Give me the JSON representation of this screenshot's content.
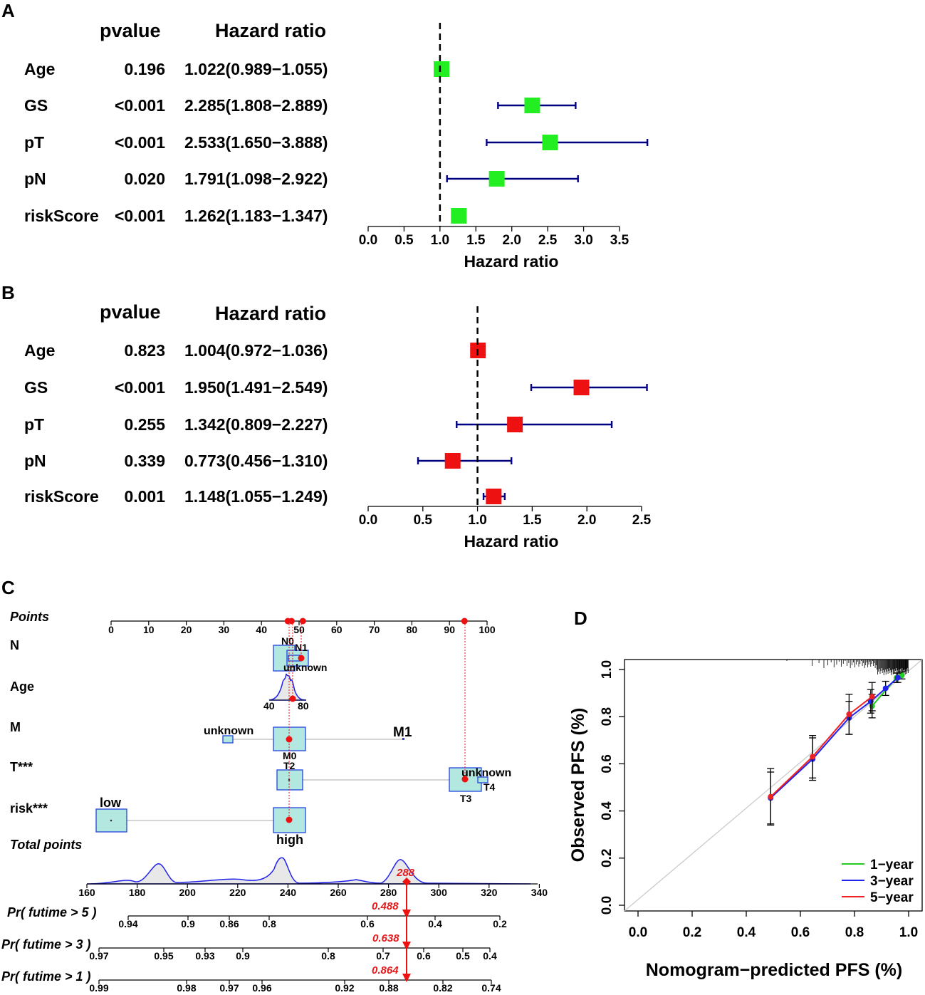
{
  "colors": {
    "forest_a_box": "#22ee22",
    "forest_b_box": "#ee1111",
    "ci_line": "#000080",
    "nomo_box_fill": "#b3e8e0",
    "nomo_box_stroke": "#2244dd",
    "nomo_red": "#ee1111",
    "line_1year": "#22cc22",
    "line_3year": "#2222ee",
    "line_5year": "#ee2222"
  },
  "chart_data": [
    {
      "panel": "A",
      "type": "forest",
      "col_pvalue": "pvalue",
      "col_hr": "Hazard ratio",
      "xlabel": "Hazard ratio",
      "ticks": [
        "0.0",
        "0.5",
        "1.0",
        "1.5",
        "2.0",
        "2.5",
        "3.0",
        "3.5"
      ],
      "xlim": [
        0,
        3.5
      ],
      "ref": 1.0,
      "rows": [
        {
          "name": "Age",
          "pvalue": "0.196",
          "hr_text": "1.022(0.989−1.055)",
          "hr": 1.022,
          "lo": 0.989,
          "hi": 1.055
        },
        {
          "name": "GS",
          "pvalue": "<0.001",
          "hr_text": "2.285(1.808−2.889)",
          "hr": 2.285,
          "lo": 1.808,
          "hi": 2.889
        },
        {
          "name": "pT",
          "pvalue": "<0.001",
          "hr_text": "2.533(1.650−3.888)",
          "hr": 2.533,
          "lo": 1.65,
          "hi": 3.888
        },
        {
          "name": "pN",
          "pvalue": "0.020",
          "hr_text": "1.791(1.098−2.922)",
          "hr": 1.791,
          "lo": 1.098,
          "hi": 2.922
        },
        {
          "name": "riskScore",
          "pvalue": "<0.001",
          "hr_text": "1.262(1.183−1.347)",
          "hr": 1.262,
          "lo": 1.183,
          "hi": 1.347
        }
      ]
    },
    {
      "panel": "B",
      "type": "forest",
      "col_pvalue": "pvalue",
      "col_hr": "Hazard ratio",
      "xlabel": "Hazard ratio",
      "ticks": [
        "0.0",
        "0.5",
        "1.0",
        "1.5",
        "2.0",
        "2.5"
      ],
      "xlim": [
        0,
        2.5
      ],
      "ref": 1.0,
      "rows": [
        {
          "name": "Age",
          "pvalue": "0.823",
          "hr_text": "1.004(0.972−1.036)",
          "hr": 1.004,
          "lo": 0.972,
          "hi": 1.036
        },
        {
          "name": "GS",
          "pvalue": "<0.001",
          "hr_text": "1.950(1.491−2.549)",
          "hr": 1.95,
          "lo": 1.491,
          "hi": 2.549
        },
        {
          "name": "pT",
          "pvalue": "0.255",
          "hr_text": "1.342(0.809−2.227)",
          "hr": 1.342,
          "lo": 0.809,
          "hi": 2.227
        },
        {
          "name": "pN",
          "pvalue": "0.339",
          "hr_text": "0.773(0.456−1.310)",
          "hr": 0.773,
          "lo": 0.456,
          "hi": 1.31
        },
        {
          "name": "riskScore",
          "pvalue": "0.001",
          "hr_text": "1.148(1.055−1.249)",
          "hr": 1.148,
          "lo": 1.055,
          "hi": 1.249
        }
      ]
    },
    {
      "panel": "C",
      "type": "nomogram",
      "points_label": "Points",
      "points_ticks": [
        "0",
        "10",
        "20",
        "30",
        "40",
        "50",
        "60",
        "70",
        "80",
        "90",
        "100"
      ],
      "rows": {
        "N": {
          "label": "N",
          "cats": [
            "N0",
            "N1",
            "unknown"
          ],
          "points": [
            47,
            51,
            50
          ]
        },
        "Age": {
          "label": "Age",
          "ticks": [
            "40",
            "80"
          ],
          "points": 48
        },
        "M": {
          "label": "M",
          "cats": [
            "unknown",
            "M0",
            "M1"
          ],
          "points": [
            31,
            47,
            77
          ]
        },
        "T": {
          "label": "T***",
          "cats": [
            "T2",
            "unknown",
            "T3",
            "T4"
          ],
          "points": [
            47,
            94,
            94,
            99
          ]
        },
        "risk": {
          "label": "risk***",
          "cats": [
            "low",
            "high"
          ],
          "points": [
            0,
            47
          ]
        }
      },
      "total_label": "Total points",
      "total_ticks": [
        "160",
        "180",
        "200",
        "220",
        "240",
        "260",
        "280",
        "300",
        "320",
        "340"
      ],
      "total_value": "288",
      "pr5": {
        "label": "Pr( futime > 5 )",
        "ticks": [
          "0.94",
          "0.9",
          "0.86",
          "0.8",
          "0.6",
          "0.4",
          "0.2"
        ],
        "value": "0.488"
      },
      "pr3": {
        "label": "Pr( futime > 3 )",
        "ticks": [
          "0.97",
          "0.95",
          "0.93",
          "0.9",
          "0.8",
          "0.7",
          "0.6",
          "0.5",
          "0.4"
        ],
        "value": "0.638"
      },
      "pr1": {
        "label": "Pr( futime > 1 )",
        "ticks": [
          "0.99",
          "0.98",
          "0.97",
          "0.96",
          "0.92",
          "0.88",
          "0.82",
          "0.74"
        ],
        "value": "0.864"
      }
    },
    {
      "panel": "D",
      "type": "line",
      "xlabel": "Nomogram−predicted PFS (%)",
      "ylabel": "Observed PFS (%)",
      "xticks": [
        "0.0",
        "0.2",
        "0.4",
        "0.6",
        "0.8",
        "1.0"
      ],
      "yticks": [
        "0.0",
        "0.2",
        "0.4",
        "0.6",
        "0.8",
        "1.0"
      ],
      "xlim": [
        0,
        1.0
      ],
      "ylim": [
        0,
        1.0
      ],
      "series": [
        {
          "name": "1−year",
          "x": [
            0.865,
            0.955,
            0.975
          ],
          "y": [
            0.845,
            0.965,
            0.975
          ],
          "err": [
            0.05,
            0.02,
            0.015
          ]
        },
        {
          "name": "3−year",
          "x": [
            0.49,
            0.645,
            0.78,
            0.86,
            0.915,
            0.96
          ],
          "y": [
            0.455,
            0.62,
            0.795,
            0.865,
            0.92,
            0.965
          ],
          "err": [
            0.11,
            0.09,
            0.07,
            0.05,
            0.03,
            0.02
          ]
        },
        {
          "name": "5−year",
          "x": [
            0.49,
            0.645,
            0.78,
            0.865
          ],
          "y": [
            0.46,
            0.63,
            0.81,
            0.885
          ],
          "err": [
            0.12,
            0.09,
            0.085,
            0.06
          ]
        }
      ]
    }
  ]
}
